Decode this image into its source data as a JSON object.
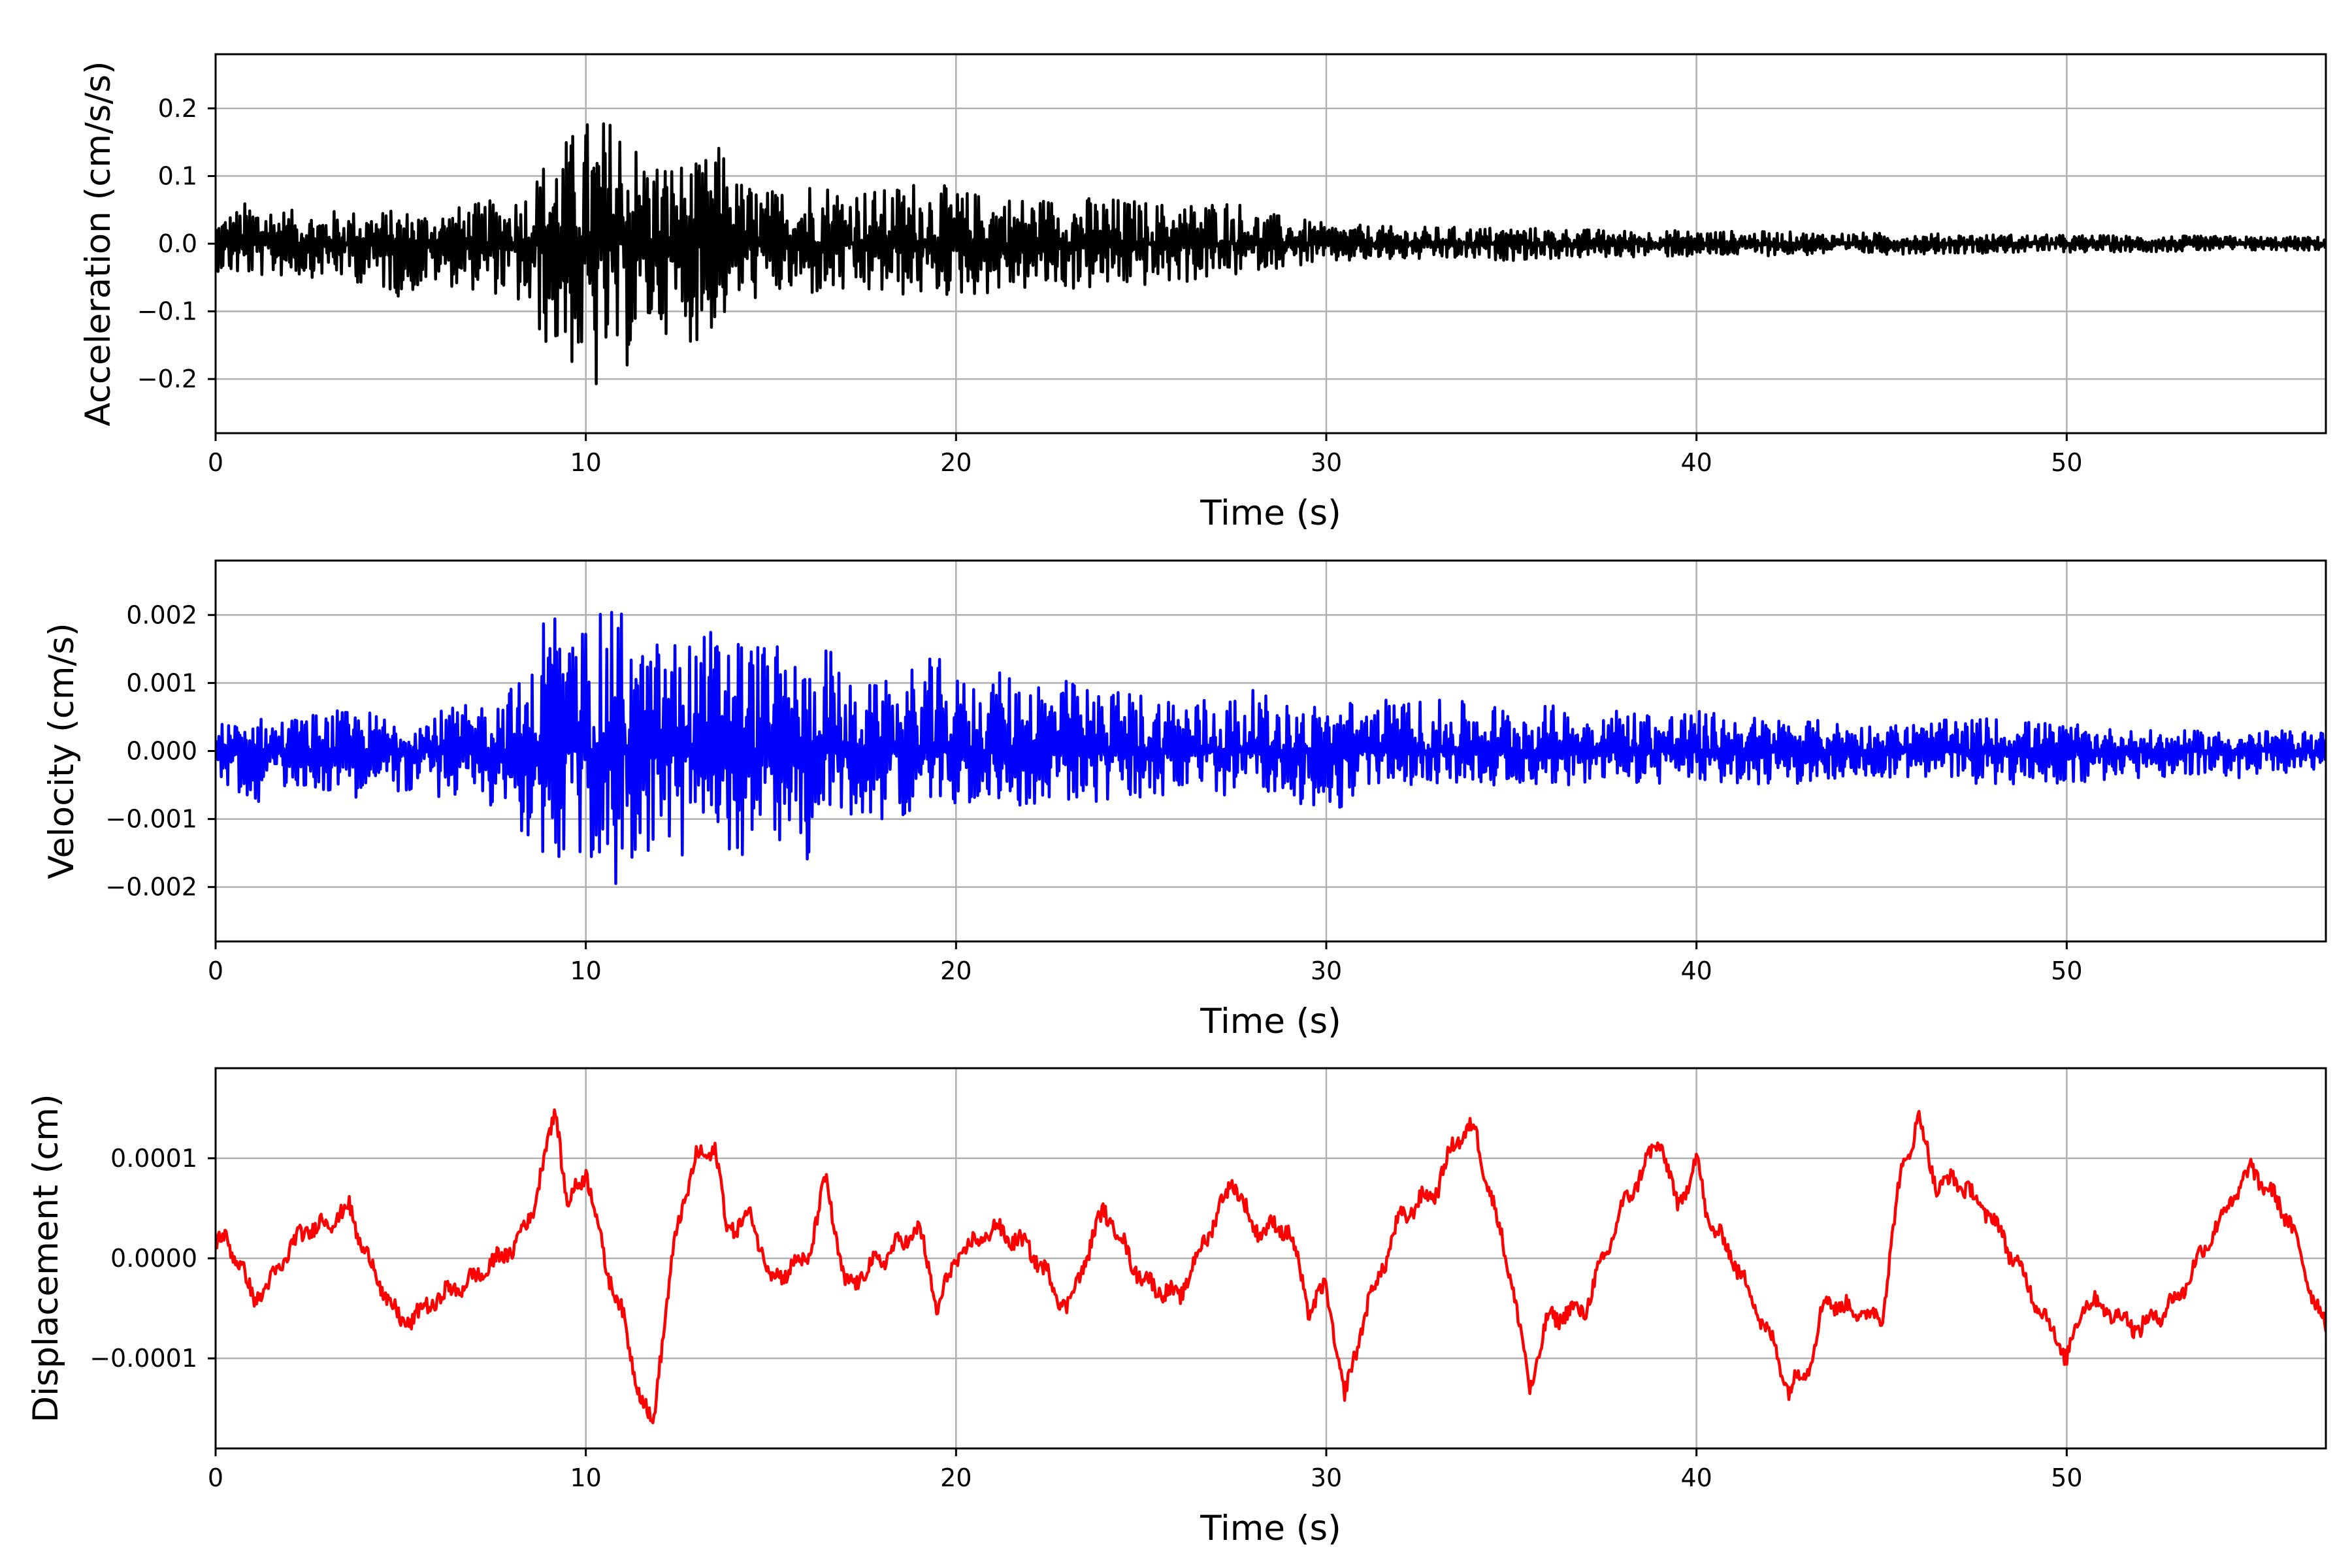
{
  "chart_data": [
    {
      "type": "line",
      "xlabel": "Time (s)",
      "ylabel": "Acceleration (cm/s/s)",
      "xlim": [
        0,
        57
      ],
      "ylim": [
        -0.28,
        0.28
      ],
      "xticks": [
        0,
        10,
        20,
        30,
        40,
        50
      ],
      "xtick_labels": [
        "0",
        "10",
        "20",
        "30",
        "40",
        "50"
      ],
      "yticks": [
        -0.2,
        -0.1,
        0.0,
        0.1,
        0.2
      ],
      "ytick_labels": [
        "−0.2",
        "−0.1",
        "0.0",
        "0.1",
        "0.2"
      ],
      "grid": true,
      "color": "#000000",
      "series": [
        {
          "x": [
            0,
            0.5,
            1,
            2,
            3,
            4,
            5,
            6,
            7,
            8,
            8.5,
            9,
            9.5,
            10,
            10.2,
            10.5,
            11,
            11.5,
            12,
            13,
            13.7,
            14,
            15,
            16,
            17,
            18,
            19,
            20,
            22,
            24,
            26,
            27.5,
            28,
            30,
            32,
            35,
            38,
            40,
            42,
            45,
            48,
            50,
            52,
            55,
            57
          ],
          "envelope_pos": [
            0.04,
            0.05,
            0.07,
            0.05,
            0.05,
            0.05,
            0.05,
            0.05,
            0.06,
            0.07,
            0.09,
            0.14,
            0.16,
            0.19,
            0.18,
            0.19,
            0.2,
            0.14,
            0.13,
            0.12,
            0.15,
            0.1,
            0.08,
            0.1,
            0.09,
            0.08,
            0.1,
            0.08,
            0.07,
            0.07,
            0.06,
            0.07,
            0.05,
            0.03,
            0.025,
            0.025,
            0.02,
            0.02,
            0.018,
            0.016,
            0.014,
            0.013,
            0.012,
            0.011,
            0.01
          ],
          "envelope_neg": [
            -0.04,
            -0.05,
            -0.05,
            -0.05,
            -0.05,
            -0.06,
            -0.08,
            -0.06,
            -0.07,
            -0.08,
            -0.12,
            -0.16,
            -0.18,
            -0.2,
            -0.25,
            -0.19,
            -0.2,
            -0.14,
            -0.13,
            -0.15,
            -0.12,
            -0.09,
            -0.08,
            -0.08,
            -0.08,
            -0.08,
            -0.08,
            -0.08,
            -0.07,
            -0.07,
            -0.06,
            -0.05,
            -0.04,
            -0.03,
            -0.025,
            -0.025,
            -0.02,
            -0.02,
            -0.018,
            -0.016,
            -0.014,
            -0.013,
            -0.012,
            -0.011,
            -0.01
          ]
        }
      ]
    },
    {
      "type": "line",
      "xlabel": "Time (s)",
      "ylabel": "Velocity (cm/s)",
      "xlim": [
        0,
        57
      ],
      "ylim": [
        -0.0028,
        0.0028
      ],
      "xticks": [
        0,
        10,
        20,
        30,
        40,
        50
      ],
      "xtick_labels": [
        "0",
        "10",
        "20",
        "30",
        "40",
        "50"
      ],
      "yticks": [
        -0.002,
        -0.001,
        0.0,
        0.001,
        0.002
      ],
      "ytick_labels": [
        "−0.002",
        "−0.001",
        "0.000",
        "0.001",
        "0.002"
      ],
      "grid": true,
      "color": "#0000ff",
      "series": [
        {
          "x": [
            0,
            1,
            2,
            3,
            4,
            5,
            6,
            7,
            8,
            8.5,
            9,
            9.5,
            10,
            10.5,
            11,
            11.5,
            12,
            13,
            13.5,
            14,
            15,
            16,
            16.5,
            17,
            18,
            19,
            19.5,
            20,
            22,
            24,
            25,
            27,
            28,
            29,
            30,
            31,
            35,
            40,
            42,
            45,
            48,
            50,
            52,
            55,
            57
          ],
          "envelope_pos": [
            0.0004,
            0.0005,
            0.0005,
            0.0006,
            0.0006,
            0.0005,
            0.0006,
            0.0007,
            0.001,
            0.0011,
            0.0026,
            0.0015,
            0.0021,
            0.002,
            0.0022,
            0.0015,
            0.0017,
            0.0017,
            0.0019,
            0.0019,
            0.0016,
            0.0013,
            0.0017,
            0.001,
            0.001,
            0.0013,
            0.0014,
            0.0011,
            0.0012,
            0.0009,
            0.0009,
            0.0008,
            0.0009,
            0.0007,
            0.0007,
            0.0008,
            0.0007,
            0.0006,
            0.0005,
            0.0004,
            0.0005,
            0.0004,
            0.0003,
            0.0003,
            0.0003
          ],
          "envelope_neg": [
            -0.0004,
            -0.0008,
            -0.0005,
            -0.0006,
            -0.0007,
            -0.0006,
            -0.0007,
            -0.0007,
            -0.001,
            -0.0014,
            -0.0018,
            -0.0016,
            -0.0018,
            -0.0019,
            -0.0021,
            -0.0015,
            -0.0016,
            -0.0017,
            -0.0015,
            -0.0016,
            -0.0013,
            -0.0017,
            -0.0009,
            -0.001,
            -0.001,
            -0.0009,
            -0.0008,
            -0.0008,
            -0.0008,
            -0.0008,
            -0.0007,
            -0.0007,
            -0.0006,
            -0.0006,
            -0.0012,
            -0.0005,
            -0.0005,
            -0.0005,
            -0.0005,
            -0.0004,
            -0.0005,
            -0.0005,
            -0.0004,
            -0.0004,
            -0.0003
          ]
        }
      ]
    },
    {
      "type": "line",
      "xlabel": "Time (s)",
      "ylabel": "Displacement (cm)",
      "xlim": [
        0,
        57
      ],
      "ylim": [
        -0.00019,
        0.00019
      ],
      "xticks": [
        0,
        10,
        20,
        30,
        40,
        50
      ],
      "xtick_labels": [
        "0",
        "10",
        "20",
        "30",
        "40",
        "50"
      ],
      "yticks": [
        -0.0001,
        0.0,
        0.0001
      ],
      "ytick_labels": [
        "−0.0001",
        "0.0000",
        "0.0001"
      ],
      "grid": true,
      "color": "#ff0000",
      "series": [
        {
          "x": [
            0,
            0.3,
            0.6,
            1,
            1.5,
            2,
            2.5,
            3,
            3.6,
            4,
            4.5,
            5,
            5.5,
            6,
            7,
            8,
            8.5,
            9,
            9.2,
            9.5,
            10,
            10.5,
            11,
            11.5,
            11.8,
            12,
            12.5,
            13,
            13.5,
            13.8,
            14.5,
            15,
            16,
            16.5,
            17,
            18,
            19,
            19.5,
            20,
            21,
            22,
            23,
            24,
            25,
            26,
            27,
            27.5,
            28,
            29,
            29.5,
            30,
            30.5,
            31,
            32,
            33,
            33.5,
            34,
            35,
            35.5,
            36,
            37,
            38,
            39,
            39.5,
            40,
            40.3,
            41,
            42,
            42.5,
            43,
            43.5,
            44,
            45,
            45.5,
            46,
            46.5,
            47,
            48,
            49,
            50,
            50.5,
            51,
            52,
            53,
            54,
            55,
            56,
            56.5,
            57
          ],
          "y": [
            1.5e-05,
            1.8e-05,
            0,
            -4e-05,
            -2.5e-05,
            1e-05,
            3e-05,
            3.5e-05,
            5e-05,
            1e-05,
            -3e-05,
            -6.5e-05,
            -5.5e-05,
            -4e-05,
            -2e-05,
            1e-05,
            4e-05,
            0.00012,
            0.00015,
            5e-05,
            9e-05,
            0,
            -6e-05,
            -0.00014,
            -0.00017,
            -0.0001,
            4e-05,
            0.0001,
            0.00011,
            3e-05,
            4e-05,
            -2e-05,
            0,
            8e-05,
            -3e-05,
            0,
            3e-05,
            -5e-05,
            0,
            3e-05,
            1e-05,
            -5e-05,
            5e-05,
            -2e-05,
            -4e-05,
            4e-05,
            8e-05,
            3e-05,
            3e-05,
            -5e-05,
            -3e-05,
            -0.00014,
            -6e-05,
            4e-05,
            7e-05,
            0.00012,
            0.00013,
            -2e-05,
            -0.00013,
            -6e-05,
            -5e-05,
            5e-05,
            0.00012,
            5e-05,
            0.0001,
            4e-05,
            0,
            -8e-05,
            -0.00013,
            -0.00011,
            -4e-05,
            -5e-05,
            -6e-05,
            8e-05,
            0.00014,
            7e-05,
            8e-05,
            4e-05,
            -3e-05,
            -0.0001,
            -4e-05,
            -5e-05,
            -7e-05,
            -4e-05,
            3e-05,
            9e-05,
            4e-05,
            -2e-05,
            -7e-05
          ]
        }
      ]
    }
  ]
}
